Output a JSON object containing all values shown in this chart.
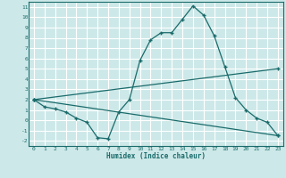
{
  "xlabel": "Humidex (Indice chaleur)",
  "ylabel": "",
  "bg_color": "#cde8e8",
  "grid_color": "#ffffff",
  "line_color": "#1a6b6b",
  "xlim": [
    -0.5,
    23.5
  ],
  "ylim": [
    -2.5,
    11.5
  ],
  "xticks": [
    0,
    1,
    2,
    3,
    4,
    5,
    6,
    7,
    8,
    9,
    10,
    11,
    12,
    13,
    14,
    15,
    16,
    17,
    18,
    19,
    20,
    21,
    22,
    23
  ],
  "yticks": [
    -2,
    -1,
    0,
    1,
    2,
    3,
    4,
    5,
    6,
    7,
    8,
    9,
    10,
    11
  ],
  "curve1_x": [
    0,
    1,
    2,
    3,
    4,
    5,
    6,
    7,
    8,
    9,
    10,
    11,
    12,
    13,
    14,
    15,
    16,
    17,
    18,
    19,
    20,
    21,
    22,
    23
  ],
  "curve1_y": [
    2.0,
    1.3,
    1.1,
    0.8,
    0.2,
    -0.2,
    -1.7,
    -1.8,
    0.8,
    2.0,
    5.8,
    7.8,
    8.5,
    8.5,
    9.8,
    11.1,
    10.2,
    8.2,
    5.2,
    2.2,
    1.0,
    0.2,
    -0.2,
    -1.5
  ],
  "curve2_x": [
    0,
    23
  ],
  "curve2_y": [
    2.0,
    5.0
  ],
  "curve3_x": [
    0,
    23
  ],
  "curve3_y": [
    2.0,
    -1.5
  ],
  "marker": "+",
  "markersize": 3.5,
  "linewidth": 0.9,
  "tick_fontsize": 4.5,
  "xlabel_fontsize": 5.5
}
